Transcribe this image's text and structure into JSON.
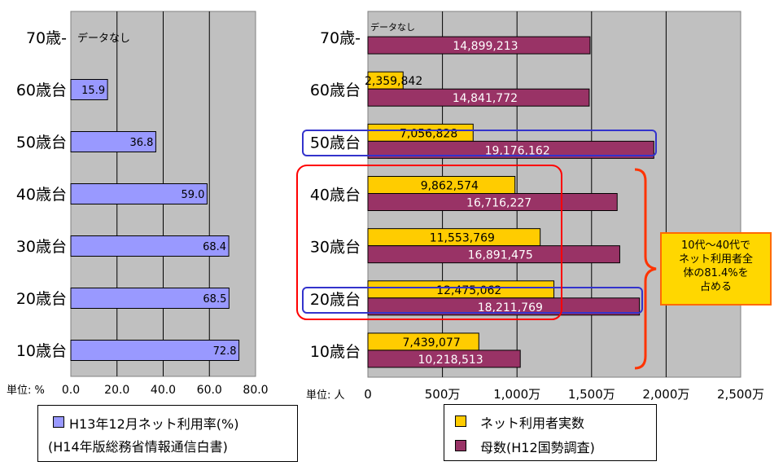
{
  "chart_data": [
    {
      "type": "bar",
      "orientation": "horizontal",
      "categories": [
        "70歳-",
        "60歳台",
        "50歳台",
        "40歳台",
        "30歳台",
        "20歳台",
        "10歳台"
      ],
      "series": [
        {
          "name": "H13年12月ネット利用率(%)",
          "values": [
            null,
            15.9,
            36.8,
            59.0,
            68.4,
            68.5,
            72.8
          ],
          "labels": [
            "",
            "15.9",
            "36.8",
            "59.0",
            "68.4",
            "68.5",
            "72.8"
          ]
        }
      ],
      "annotation": "データなし",
      "xlim": [
        0,
        80
      ],
      "xticks": [
        "0.0",
        "20.0",
        "40.0",
        "60.0",
        "80.0"
      ],
      "unit_label": "単位: %",
      "grid": true,
      "legend": {
        "line1": "H13年12月ネット利用率(%)",
        "line2": "(H14年版総務省情報通信白書)"
      }
    },
    {
      "type": "bar",
      "orientation": "horizontal",
      "categories": [
        "70歳-",
        "60歳台",
        "50歳台",
        "40歳台",
        "30歳台",
        "20歳台",
        "10歳台"
      ],
      "series": [
        {
          "name": "ネット利用者実数",
          "values": [
            null,
            2359842,
            7056828,
            9862574,
            11553769,
            12475062,
            7439077
          ],
          "labels": [
            "",
            "2,359,842",
            "7,056,828",
            "9,862,574",
            "11,553,769",
            "12,475,062",
            "7,439,077"
          ]
        },
        {
          "name": "母数(H12国勢調査)",
          "values": [
            14899213,
            14841772,
            19176162,
            16716227,
            16891475,
            18211769,
            10218513
          ],
          "labels": [
            "14,899,213",
            "14,841,772",
            "19,176,162",
            "16,716,227",
            "16,891,475",
            "18,211,769",
            "10,218,513"
          ]
        }
      ],
      "annotation": "データなし",
      "xlim": [
        0,
        25000000
      ],
      "xticks": [
        "0",
        "500万",
        "1,000万",
        "1,500万",
        "2,000万",
        "2,500万"
      ],
      "unit_label": "単位: 人",
      "grid": true,
      "callout": [
        "10代〜40代で",
        "ネット利用者全",
        "体の81.4%を",
        "占める"
      ]
    }
  ],
  "colors": {
    "plot_bg": "#c0c0c0",
    "rate_bar": "#9999ff",
    "users_bar": "#ffcc00",
    "population_bar": "#993366",
    "highlight_blue": "#3333cc",
    "highlight_red": "#ff0000",
    "brace": "#ff3300",
    "callout_bg": "#ffd700",
    "callout_border": "#ff6a00"
  }
}
